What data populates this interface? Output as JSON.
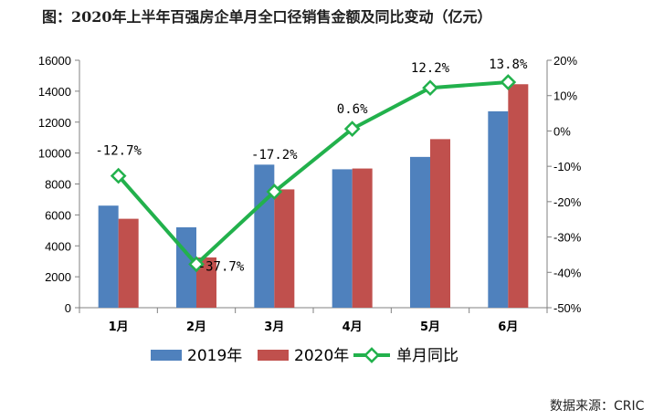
{
  "page": {
    "title": "图：2020年上半年百强房企单月全口径销售金额及同比变动（亿元）",
    "source": "数据来源：CRIC"
  },
  "colors": {
    "series_2019": "#4f81bd",
    "series_2020": "#c0504d",
    "series_yoy": "#22b14c",
    "axis": "#808080"
  },
  "chart_data": {
    "type": "bar",
    "categories": [
      "1月",
      "2月",
      "3月",
      "4月",
      "5月",
      "6月"
    ],
    "series": [
      {
        "name": "2019年",
        "type": "bar",
        "axis": "left",
        "values": [
          6600,
          5200,
          9250,
          8950,
          9750,
          12700
        ]
      },
      {
        "name": "2020年",
        "type": "bar",
        "axis": "left",
        "values": [
          5750,
          3250,
          7650,
          9000,
          10900,
          14450
        ]
      },
      {
        "name": "单月同比",
        "type": "line",
        "axis": "right",
        "values": [
          -12.7,
          -37.7,
          -17.2,
          0.6,
          12.2,
          13.8
        ],
        "labels": [
          "-12.7%",
          "-37.7%",
          "-17.2%",
          "0.6%",
          "12.2%",
          "13.8%"
        ]
      }
    ],
    "ylim_left": [
      0,
      16000
    ],
    "yticks_left": [
      "0",
      "2000",
      "4000",
      "6000",
      "8000",
      "10000",
      "12000",
      "14000",
      "16000"
    ],
    "ylim_right": [
      -50,
      20
    ],
    "yticks_right": [
      "-50%",
      "-40%",
      "-30%",
      "-20%",
      "-10%",
      "0%",
      "10%",
      "20%"
    ],
    "grid": false,
    "legend": "bottom"
  }
}
